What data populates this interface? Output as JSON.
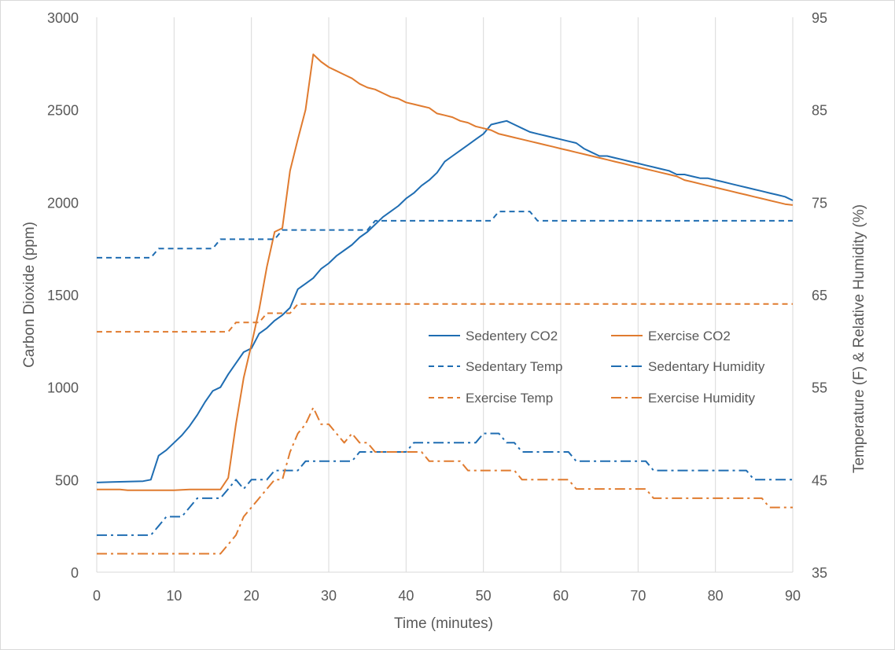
{
  "chart_data": {
    "type": "line",
    "title": "",
    "xlabel": "Time (minutes)",
    "ylabel_left": "Carbon Dioxide (ppm)",
    "ylabel_right": "Temperature (F) & Relative Humidity (%)",
    "xlim": [
      0,
      90
    ],
    "ylim_left": [
      0,
      3000
    ],
    "ylim_right": [
      35,
      95
    ],
    "x_ticks": [
      "0",
      "10",
      "20",
      "30",
      "40",
      "50",
      "60",
      "70",
      "80",
      "90"
    ],
    "y_left_ticks": [
      "0",
      "500",
      "1000",
      "1500",
      "2000",
      "2500",
      "3000"
    ],
    "y_right_ticks": [
      "35",
      "45",
      "55",
      "65",
      "75",
      "85",
      "95"
    ],
    "grid": "vertical",
    "legend_position": "center-right",
    "series": [
      {
        "name": "Sedentery CO2",
        "axis": "left",
        "color": "#1f6db2",
        "style": "solid",
        "points": [
          [
            0,
            485
          ],
          [
            2,
            488
          ],
          [
            4,
            490
          ],
          [
            6,
            492
          ],
          [
            7,
            500
          ],
          [
            8,
            630
          ],
          [
            9,
            660
          ],
          [
            10,
            700
          ],
          [
            11,
            740
          ],
          [
            12,
            790
          ],
          [
            13,
            850
          ],
          [
            14,
            920
          ],
          [
            15,
            980
          ],
          [
            16,
            1000
          ],
          [
            17,
            1070
          ],
          [
            18,
            1130
          ],
          [
            19,
            1190
          ],
          [
            20,
            1210
          ],
          [
            21,
            1290
          ],
          [
            22,
            1320
          ],
          [
            23,
            1360
          ],
          [
            24,
            1390
          ],
          [
            25,
            1430
          ],
          [
            26,
            1530
          ],
          [
            27,
            1560
          ],
          [
            28,
            1590
          ],
          [
            29,
            1640
          ],
          [
            30,
            1670
          ],
          [
            31,
            1710
          ],
          [
            32,
            1740
          ],
          [
            33,
            1770
          ],
          [
            34,
            1810
          ],
          [
            35,
            1840
          ],
          [
            36,
            1880
          ],
          [
            37,
            1920
          ],
          [
            38,
            1950
          ],
          [
            39,
            1980
          ],
          [
            40,
            2020
          ],
          [
            41,
            2050
          ],
          [
            42,
            2090
          ],
          [
            43,
            2120
          ],
          [
            44,
            2160
          ],
          [
            45,
            2220
          ],
          [
            46,
            2250
          ],
          [
            47,
            2280
          ],
          [
            48,
            2310
          ],
          [
            49,
            2340
          ],
          [
            50,
            2370
          ],
          [
            51,
            2420
          ],
          [
            52,
            2430
          ],
          [
            53,
            2440
          ],
          [
            54,
            2420
          ],
          [
            55,
            2400
          ],
          [
            56,
            2380
          ],
          [
            57,
            2370
          ],
          [
            58,
            2360
          ],
          [
            59,
            2350
          ],
          [
            60,
            2340
          ],
          [
            61,
            2330
          ],
          [
            62,
            2320
          ],
          [
            63,
            2290
          ],
          [
            64,
            2270
          ],
          [
            65,
            2250
          ],
          [
            66,
            2250
          ],
          [
            67,
            2240
          ],
          [
            68,
            2230
          ],
          [
            69,
            2220
          ],
          [
            70,
            2210
          ],
          [
            71,
            2200
          ],
          [
            72,
            2190
          ],
          [
            73,
            2180
          ],
          [
            74,
            2170
          ],
          [
            75,
            2150
          ],
          [
            76,
            2150
          ],
          [
            77,
            2140
          ],
          [
            78,
            2130
          ],
          [
            79,
            2130
          ],
          [
            80,
            2120
          ],
          [
            81,
            2110
          ],
          [
            82,
            2100
          ],
          [
            83,
            2090
          ],
          [
            84,
            2080
          ],
          [
            85,
            2070
          ],
          [
            86,
            2060
          ],
          [
            87,
            2050
          ],
          [
            88,
            2040
          ],
          [
            89,
            2030
          ],
          [
            90,
            2010
          ]
        ]
      },
      {
        "name": "Exercise CO2",
        "axis": "left",
        "color": "#e07b2f",
        "style": "solid",
        "points": [
          [
            0,
            447
          ],
          [
            3,
            447
          ],
          [
            4,
            443
          ],
          [
            10,
            443
          ],
          [
            12,
            447
          ],
          [
            16,
            447
          ],
          [
            17,
            510
          ],
          [
            18,
            800
          ],
          [
            19,
            1050
          ],
          [
            20,
            1230
          ],
          [
            21,
            1420
          ],
          [
            22,
            1650
          ],
          [
            23,
            1840
          ],
          [
            24,
            1860
          ],
          [
            25,
            2170
          ],
          [
            26,
            2340
          ],
          [
            27,
            2500
          ],
          [
            28,
            2800
          ],
          [
            29,
            2760
          ],
          [
            30,
            2730
          ],
          [
            31,
            2710
          ],
          [
            32,
            2690
          ],
          [
            33,
            2670
          ],
          [
            34,
            2640
          ],
          [
            35,
            2620
          ],
          [
            36,
            2610
          ],
          [
            37,
            2590
          ],
          [
            38,
            2570
          ],
          [
            39,
            2560
          ],
          [
            40,
            2540
          ],
          [
            41,
            2530
          ],
          [
            42,
            2520
          ],
          [
            43,
            2510
          ],
          [
            44,
            2480
          ],
          [
            45,
            2470
          ],
          [
            46,
            2460
          ],
          [
            47,
            2440
          ],
          [
            48,
            2430
          ],
          [
            49,
            2410
          ],
          [
            50,
            2400
          ],
          [
            51,
            2390
          ],
          [
            52,
            2370
          ],
          [
            53,
            2360
          ],
          [
            54,
            2350
          ],
          [
            55,
            2340
          ],
          [
            56,
            2330
          ],
          [
            57,
            2320
          ],
          [
            58,
            2310
          ],
          [
            59,
            2300
          ],
          [
            60,
            2290
          ],
          [
            61,
            2280
          ],
          [
            62,
            2270
          ],
          [
            63,
            2260
          ],
          [
            64,
            2250
          ],
          [
            65,
            2240
          ],
          [
            66,
            2230
          ],
          [
            67,
            2220
          ],
          [
            68,
            2210
          ],
          [
            69,
            2200
          ],
          [
            70,
            2190
          ],
          [
            71,
            2180
          ],
          [
            72,
            2170
          ],
          [
            73,
            2160
          ],
          [
            74,
            2150
          ],
          [
            75,
            2140
          ],
          [
            76,
            2120
          ],
          [
            77,
            2110
          ],
          [
            78,
            2100
          ],
          [
            79,
            2090
          ],
          [
            80,
            2080
          ],
          [
            81,
            2070
          ],
          [
            82,
            2060
          ],
          [
            83,
            2050
          ],
          [
            84,
            2040
          ],
          [
            85,
            2030
          ],
          [
            86,
            2020
          ],
          [
            87,
            2010
          ],
          [
            88,
            2000
          ],
          [
            89,
            1990
          ],
          [
            90,
            1985
          ]
        ]
      },
      {
        "name": "Sedentary Temp",
        "axis": "right",
        "color": "#1f6db2",
        "style": "dashed",
        "points": [
          [
            0,
            69
          ],
          [
            7,
            69
          ],
          [
            8,
            70
          ],
          [
            15,
            70
          ],
          [
            16,
            71
          ],
          [
            23,
            71
          ],
          [
            24,
            72
          ],
          [
            35,
            72
          ],
          [
            36,
            73
          ],
          [
            51,
            73
          ],
          [
            52,
            74
          ],
          [
            56,
            74
          ],
          [
            57,
            73
          ],
          [
            90,
            73
          ]
        ]
      },
      {
        "name": "Sedentary Humidity",
        "axis": "right",
        "color": "#1f6db2",
        "style": "dashdot",
        "points": [
          [
            0,
            39
          ],
          [
            7,
            39
          ],
          [
            8,
            40
          ],
          [
            9,
            41
          ],
          [
            11,
            41
          ],
          [
            12,
            42
          ],
          [
            13,
            43
          ],
          [
            16,
            43
          ],
          [
            17,
            44
          ],
          [
            18,
            45
          ],
          [
            19,
            44
          ],
          [
            20,
            45
          ],
          [
            22,
            45
          ],
          [
            23,
            46
          ],
          [
            25,
            46
          ],
          [
            26,
            46
          ],
          [
            27,
            47
          ],
          [
            33,
            47
          ],
          [
            34,
            48
          ],
          [
            39,
            48
          ],
          [
            40,
            48
          ],
          [
            41,
            49
          ],
          [
            48,
            49
          ],
          [
            49,
            49
          ],
          [
            50,
            50
          ],
          [
            52,
            50
          ],
          [
            53,
            49
          ],
          [
            54,
            49
          ],
          [
            55,
            48
          ],
          [
            61,
            48
          ],
          [
            62,
            47
          ],
          [
            71,
            47
          ],
          [
            72,
            46
          ],
          [
            84,
            46
          ],
          [
            85,
            45
          ],
          [
            90,
            45
          ]
        ]
      },
      {
        "name": "Exercise Temp",
        "axis": "right",
        "color": "#e07b2f",
        "style": "dashed",
        "points": [
          [
            0,
            61
          ],
          [
            17,
            61
          ],
          [
            18,
            62
          ],
          [
            21,
            62
          ],
          [
            22,
            63
          ],
          [
            25,
            63
          ],
          [
            26,
            64
          ],
          [
            90,
            64
          ]
        ]
      },
      {
        "name": "Exercise Humidity",
        "axis": "right",
        "color": "#e07b2f",
        "style": "dashdot",
        "points": [
          [
            0,
            37
          ],
          [
            16,
            37
          ],
          [
            17,
            38
          ],
          [
            18,
            39
          ],
          [
            19,
            41
          ],
          [
            20,
            42
          ],
          [
            21,
            43
          ],
          [
            22,
            44
          ],
          [
            23,
            45
          ],
          [
            24,
            45
          ],
          [
            25,
            48
          ],
          [
            26,
            50
          ],
          [
            27,
            51
          ],
          [
            28,
            52.8
          ],
          [
            29,
            51
          ],
          [
            30,
            51
          ],
          [
            31,
            50
          ],
          [
            32,
            49
          ],
          [
            33,
            50
          ],
          [
            34,
            49
          ],
          [
            35,
            49
          ],
          [
            36,
            48
          ],
          [
            41,
            48
          ],
          [
            42,
            48
          ],
          [
            43,
            47
          ],
          [
            47,
            47
          ],
          [
            48,
            46
          ],
          [
            54,
            46
          ],
          [
            55,
            45
          ],
          [
            61,
            45
          ],
          [
            62,
            44
          ],
          [
            71,
            44
          ],
          [
            72,
            43
          ],
          [
            86,
            43
          ],
          [
            87,
            42
          ],
          [
            90,
            42
          ]
        ]
      }
    ]
  }
}
